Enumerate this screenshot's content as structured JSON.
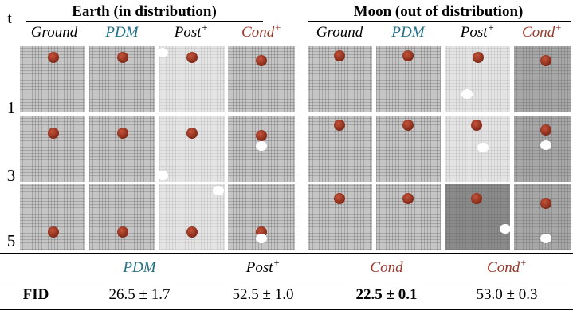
{
  "groups": [
    {
      "title": "Earth (in distribution)"
    },
    {
      "title": "Moon (out of distribution)"
    }
  ],
  "t_label": "t",
  "columns": [
    {
      "text": "Ground"
    },
    {
      "text": "PDM"
    },
    {
      "text": "Post",
      "sup": "+"
    },
    {
      "text": "Cond",
      "sup": "+"
    },
    {
      "text": "Ground"
    },
    {
      "text": "PDM"
    },
    {
      "text": "Post",
      "sup": "+"
    },
    {
      "text": "Cond",
      "sup": "+"
    }
  ],
  "rows": [
    "1",
    "3",
    "5"
  ],
  "fid_table": {
    "headers": [
      {
        "text": "PDM"
      },
      {
        "text": "Post",
        "sup": "+"
      },
      {
        "text": "Cond"
      },
      {
        "text": "Cond",
        "sup": "+"
      }
    ],
    "row_label": "FID",
    "values": [
      "26.5 ± 1.7",
      "52.5 ± 1.0",
      "22.5 ± 0.1",
      "53.0 ± 0.3"
    ]
  }
}
